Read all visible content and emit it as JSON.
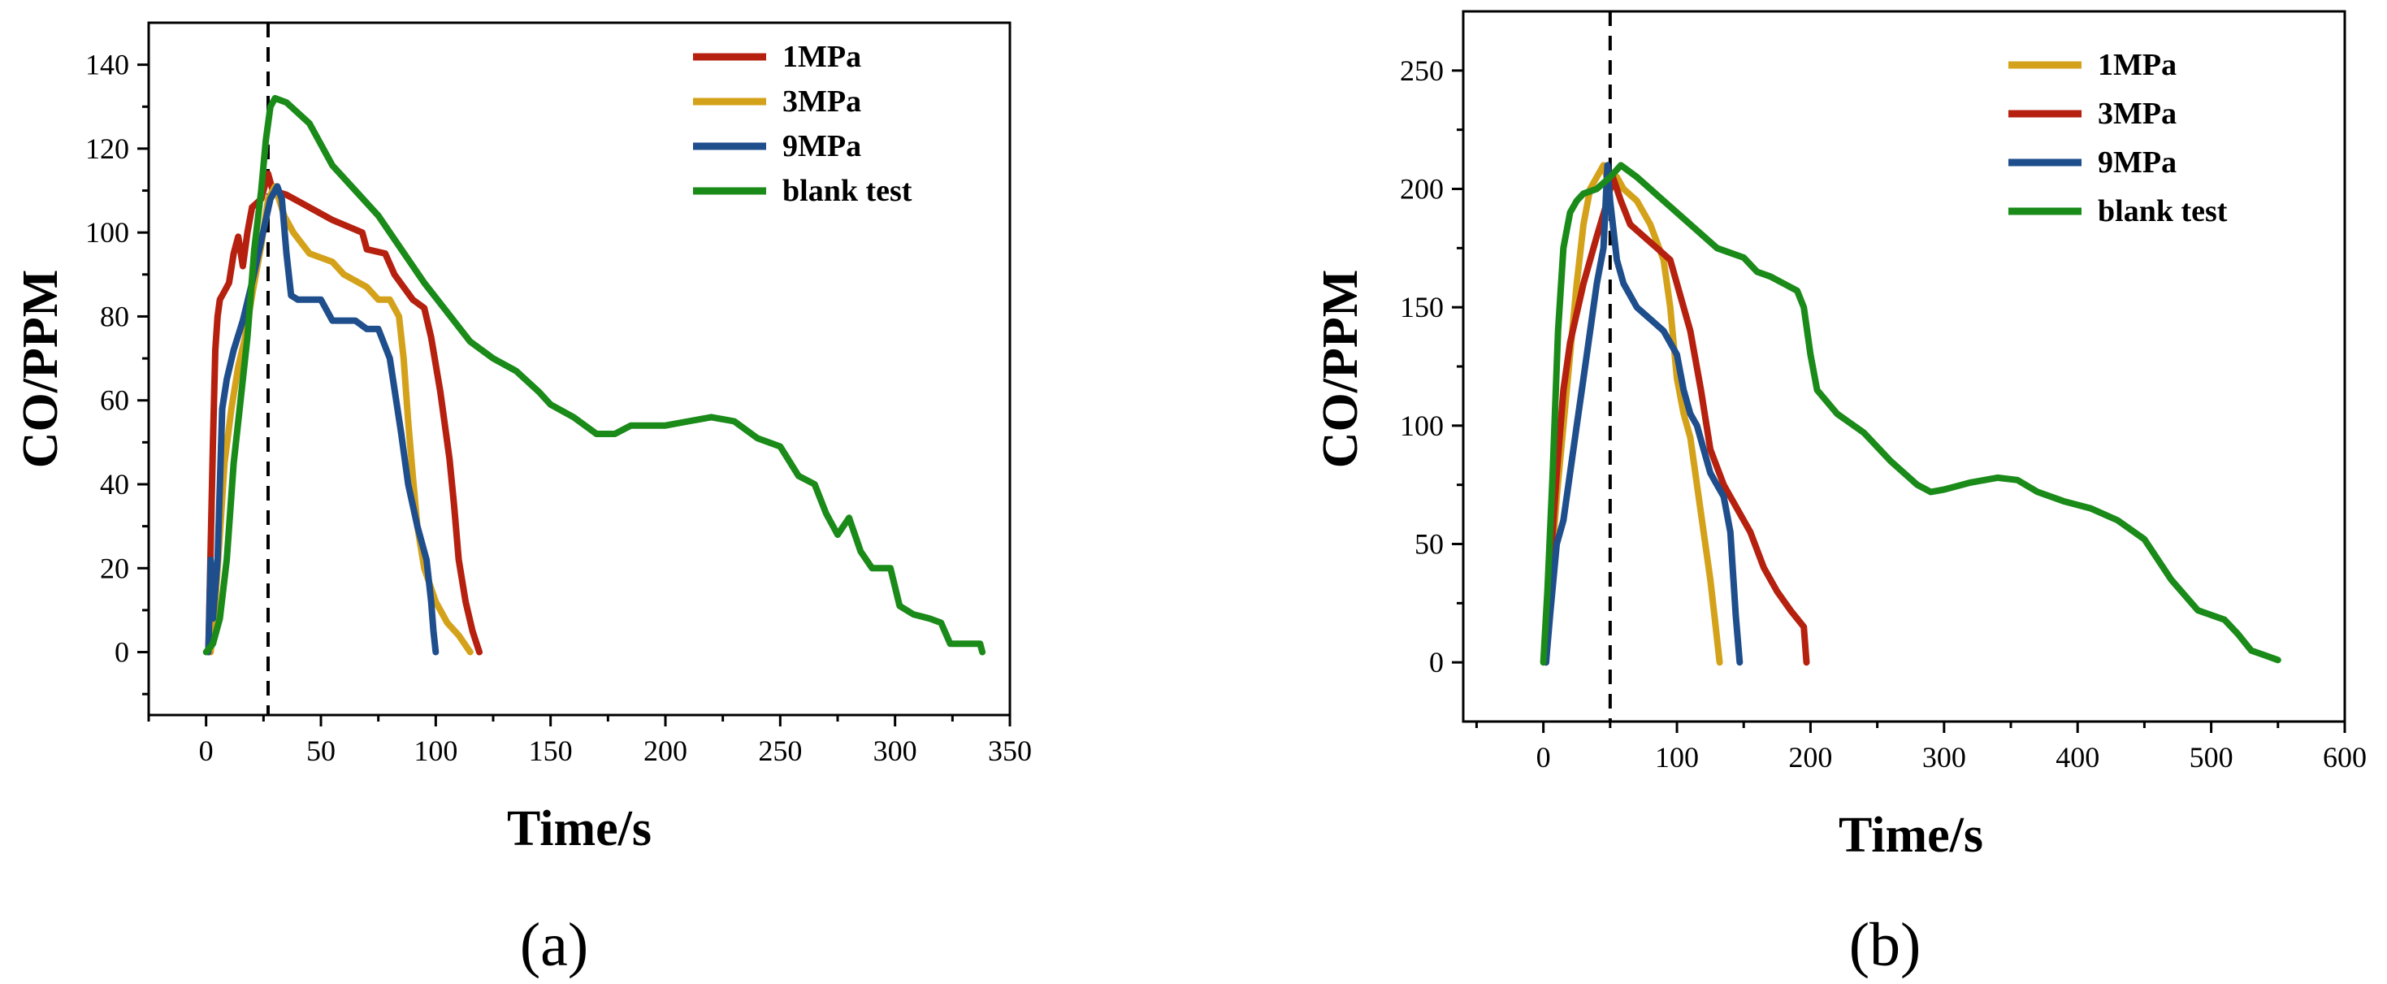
{
  "chart_data": [
    {
      "type": "line",
      "panel_label": "(a)",
      "xlabel": "Time/s",
      "ylabel": "CO/PPM",
      "xlim": [
        -25,
        350
      ],
      "ylim": [
        -15,
        150
      ],
      "xticks": [
        0,
        50,
        100,
        150,
        200,
        250,
        300,
        350
      ],
      "yticks": [
        0,
        20,
        40,
        60,
        80,
        100,
        120,
        140
      ],
      "xtick_labels": [
        "0",
        "50",
        "100",
        "150",
        "200",
        "250",
        "300",
        "350"
      ],
      "ytick_labels": [
        "0",
        "20",
        "40",
        "60",
        "80",
        "100",
        "120",
        "140"
      ],
      "reference_line_x": 27,
      "legend_position": "top-right",
      "series": [
        {
          "name": "1MPa",
          "color": "#b5200f",
          "points": [
            [
              1,
              0
            ],
            [
              2,
              25
            ],
            [
              3,
              50
            ],
            [
              4,
              72
            ],
            [
              5,
              80
            ],
            [
              6,
              84
            ],
            [
              8,
              86
            ],
            [
              10,
              88
            ],
            [
              12,
              95
            ],
            [
              14,
              99
            ],
            [
              16,
              92
            ],
            [
              18,
              100
            ],
            [
              20,
              106
            ],
            [
              24,
              108
            ],
            [
              27,
              114
            ],
            [
              29,
              110
            ],
            [
              35,
              109
            ],
            [
              45,
              106
            ],
            [
              55,
              103
            ],
            [
              68,
              100
            ],
            [
              70,
              96
            ],
            [
              78,
              95
            ],
            [
              82,
              90
            ],
            [
              90,
              84
            ],
            [
              95,
              82
            ],
            [
              98,
              75
            ],
            [
              102,
              62
            ],
            [
              106,
              46
            ],
            [
              108,
              35
            ],
            [
              110,
              22
            ],
            [
              113,
              12
            ],
            [
              116,
              5
            ],
            [
              119,
              0
            ]
          ]
        },
        {
          "name": "3MPa",
          "color": "#d4a21a",
          "points": [
            [
              2,
              0
            ],
            [
              4,
              12
            ],
            [
              6,
              28
            ],
            [
              8,
              45
            ],
            [
              11,
              58
            ],
            [
              14,
              68
            ],
            [
              17,
              75
            ],
            [
              20,
              85
            ],
            [
              24,
              97
            ],
            [
              27,
              108
            ],
            [
              30,
              111
            ],
            [
              34,
              104
            ],
            [
              38,
              100
            ],
            [
              45,
              95
            ],
            [
              55,
              93
            ],
            [
              60,
              90
            ],
            [
              70,
              87
            ],
            [
              75,
              84
            ],
            [
              80,
              84
            ],
            [
              84,
              80
            ],
            [
              86,
              70
            ],
            [
              88,
              55
            ],
            [
              90,
              42
            ],
            [
              92,
              30
            ],
            [
              95,
              20
            ],
            [
              100,
              12
            ],
            [
              105,
              7
            ],
            [
              110,
              4
            ],
            [
              115,
              0
            ]
          ]
        },
        {
          "name": "9MPa",
          "color": "#1f4e8c",
          "points": [
            [
              1,
              0
            ],
            [
              2,
              22
            ],
            [
              3,
              8
            ],
            [
              5,
              22
            ],
            [
              7,
              58
            ],
            [
              9,
              65
            ],
            [
              12,
              72
            ],
            [
              16,
              79
            ],
            [
              20,
              88
            ],
            [
              24,
              98
            ],
            [
              28,
              108
            ],
            [
              31,
              111
            ],
            [
              33,
              108
            ],
            [
              35,
              95
            ],
            [
              37,
              85
            ],
            [
              40,
              84
            ],
            [
              50,
              84
            ],
            [
              55,
              79
            ],
            [
              65,
              79
            ],
            [
              70,
              77
            ],
            [
              75,
              77
            ],
            [
              80,
              70
            ],
            [
              85,
              52
            ],
            [
              88,
              40
            ],
            [
              92,
              30
            ],
            [
              96,
              22
            ],
            [
              98,
              12
            ],
            [
              99,
              5
            ],
            [
              100,
              0
            ]
          ]
        },
        {
          "name": "blank test",
          "color": "#1a8a19",
          "points": [
            [
              0,
              0
            ],
            [
              3,
              2
            ],
            [
              6,
              8
            ],
            [
              9,
              22
            ],
            [
              12,
              45
            ],
            [
              15,
              60
            ],
            [
              18,
              75
            ],
            [
              21,
              96
            ],
            [
              24,
              110
            ],
            [
              26,
              122
            ],
            [
              28,
              130
            ],
            [
              30,
              132
            ],
            [
              35,
              131
            ],
            [
              45,
              126
            ],
            [
              55,
              116
            ],
            [
              65,
              110
            ],
            [
              75,
              104
            ],
            [
              85,
              96
            ],
            [
              95,
              88
            ],
            [
              105,
              81
            ],
            [
              115,
              74
            ],
            [
              125,
              70
            ],
            [
              135,
              67
            ],
            [
              145,
              62
            ],
            [
              150,
              59
            ],
            [
              160,
              56
            ],
            [
              170,
              52
            ],
            [
              178,
              52
            ],
            [
              185,
              54
            ],
            [
              200,
              54
            ],
            [
              210,
              55
            ],
            [
              220,
              56
            ],
            [
              230,
              55
            ],
            [
              240,
              51
            ],
            [
              250,
              49
            ],
            [
              258,
              42
            ],
            [
              265,
              40
            ],
            [
              270,
              33
            ],
            [
              275,
              28
            ],
            [
              280,
              32
            ],
            [
              285,
              24
            ],
            [
              290,
              20
            ],
            [
              298,
              20
            ],
            [
              302,
              11
            ],
            [
              308,
              9
            ],
            [
              315,
              8
            ],
            [
              320,
              7
            ],
            [
              324,
              2
            ],
            [
              330,
              2
            ],
            [
              337,
              2
            ],
            [
              338,
              0
            ]
          ]
        }
      ]
    },
    {
      "type": "line",
      "panel_label": "(b)",
      "xlabel": "Time/s",
      "ylabel": "CO/PPM",
      "xlim": [
        -60,
        600
      ],
      "ylim": [
        -25,
        275
      ],
      "xticks": [
        0,
        100,
        200,
        300,
        400,
        500,
        600
      ],
      "yticks": [
        0,
        50,
        100,
        150,
        200,
        250
      ],
      "xtick_labels": [
        "0",
        "100",
        "200",
        "300",
        "400",
        "500",
        "600"
      ],
      "ytick_labels": [
        "0",
        "50",
        "100",
        "150",
        "200",
        "250"
      ],
      "reference_line_x": 50,
      "legend_position": "top-right",
      "series": [
        {
          "name": "1MPa",
          "color": "#d4a21a",
          "points": [
            [
              2,
              0
            ],
            [
              6,
              40
            ],
            [
              10,
              70
            ],
            [
              15,
              100
            ],
            [
              20,
              130
            ],
            [
              25,
              160
            ],
            [
              30,
              185
            ],
            [
              35,
              200
            ],
            [
              40,
              205
            ],
            [
              45,
              210
            ],
            [
              50,
              200
            ],
            [
              55,
              205
            ],
            [
              60,
              200
            ],
            [
              70,
              195
            ],
            [
              80,
              185
            ],
            [
              90,
              170
            ],
            [
              95,
              150
            ],
            [
              100,
              120
            ],
            [
              105,
              105
            ],
            [
              110,
              95
            ],
            [
              115,
              75
            ],
            [
              120,
              55
            ],
            [
              125,
              35
            ],
            [
              128,
              20
            ],
            [
              132,
              0
            ]
          ]
        },
        {
          "name": "3MPa",
          "color": "#b5200f",
          "points": [
            [
              2,
              0
            ],
            [
              5,
              40
            ],
            [
              10,
              80
            ],
            [
              15,
              115
            ],
            [
              20,
              135
            ],
            [
              30,
              160
            ],
            [
              40,
              180
            ],
            [
              48,
              195
            ],
            [
              52,
              205
            ],
            [
              58,
              195
            ],
            [
              65,
              185
            ],
            [
              75,
              180
            ],
            [
              85,
              175
            ],
            [
              95,
              170
            ],
            [
              100,
              160
            ],
            [
              110,
              140
            ],
            [
              118,
              115
            ],
            [
              125,
              90
            ],
            [
              135,
              75
            ],
            [
              145,
              65
            ],
            [
              155,
              55
            ],
            [
              165,
              40
            ],
            [
              175,
              30
            ],
            [
              185,
              22
            ],
            [
              195,
              15
            ],
            [
              197,
              0
            ]
          ]
        },
        {
          "name": "9MPa",
          "color": "#1f4e8c",
          "points": [
            [
              2,
              0
            ],
            [
              5,
              20
            ],
            [
              10,
              50
            ],
            [
              15,
              60
            ],
            [
              20,
              80
            ],
            [
              25,
              100
            ],
            [
              30,
              120
            ],
            [
              35,
              140
            ],
            [
              40,
              160
            ],
            [
              45,
              175
            ],
            [
              48,
              210
            ],
            [
              50,
              195
            ],
            [
              55,
              170
            ],
            [
              60,
              160
            ],
            [
              70,
              150
            ],
            [
              80,
              145
            ],
            [
              90,
              140
            ],
            [
              100,
              130
            ],
            [
              105,
              115
            ],
            [
              110,
              105
            ],
            [
              115,
              100
            ],
            [
              120,
              90
            ],
            [
              125,
              80
            ],
            [
              130,
              75
            ],
            [
              135,
              70
            ],
            [
              140,
              55
            ],
            [
              144,
              20
            ],
            [
              147,
              0
            ]
          ]
        },
        {
          "name": "blank test",
          "color": "#1a8a19",
          "points": [
            [
              0,
              0
            ],
            [
              3,
              30
            ],
            [
              7,
              80
            ],
            [
              11,
              140
            ],
            [
              15,
              175
            ],
            [
              20,
              190
            ],
            [
              25,
              195
            ],
            [
              30,
              198
            ],
            [
              40,
              200
            ],
            [
              50,
              205
            ],
            [
              58,
              210
            ],
            [
              70,
              205
            ],
            [
              80,
              200
            ],
            [
              90,
              195
            ],
            [
              100,
              190
            ],
            [
              110,
              185
            ],
            [
              120,
              180
            ],
            [
              130,
              175
            ],
            [
              140,
              173
            ],
            [
              150,
              171
            ],
            [
              160,
              165
            ],
            [
              170,
              163
            ],
            [
              180,
              160
            ],
            [
              190,
              157
            ],
            [
              195,
              150
            ],
            [
              200,
              130
            ],
            [
              205,
              115
            ],
            [
              220,
              105
            ],
            [
              240,
              97
            ],
            [
              260,
              85
            ],
            [
              280,
              75
            ],
            [
              290,
              72
            ],
            [
              300,
              73
            ],
            [
              320,
              76
            ],
            [
              340,
              78
            ],
            [
              355,
              77
            ],
            [
              370,
              72
            ],
            [
              390,
              68
            ],
            [
              410,
              65
            ],
            [
              430,
              60
            ],
            [
              450,
              52
            ],
            [
              470,
              35
            ],
            [
              490,
              22
            ],
            [
              510,
              18
            ],
            [
              520,
              12
            ],
            [
              530,
              5
            ],
            [
              540,
              3
            ],
            [
              550,
              1
            ]
          ]
        }
      ]
    }
  ]
}
